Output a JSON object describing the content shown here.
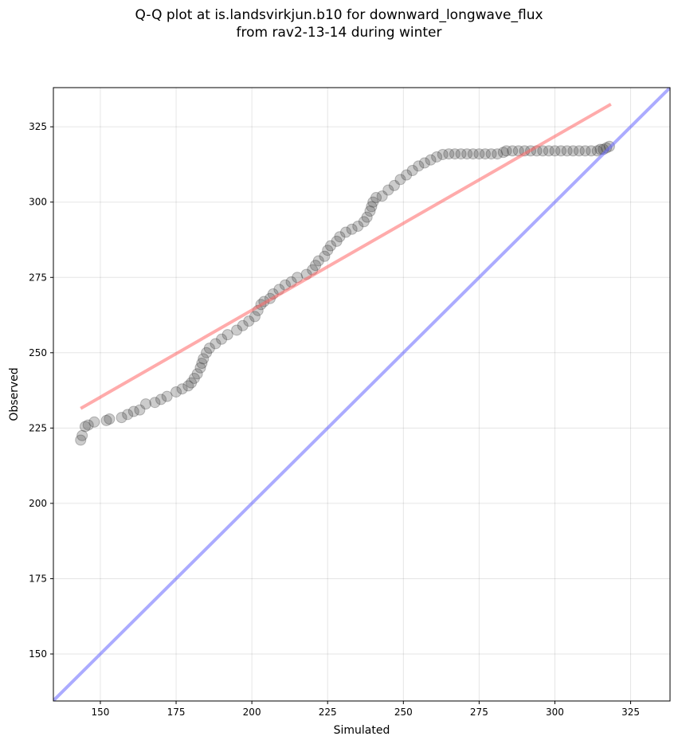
{
  "chart_data": {
    "type": "scatter",
    "title_line1": "Q-Q plot at is.landsvirkjun.b10 for downward_longwave_flux",
    "title_line2": "from rav2-13-14 during winter",
    "xlabel": "Simulated",
    "ylabel": "Observed",
    "xlim": [
      134.5,
      338
    ],
    "ylim": [
      134.4,
      338
    ],
    "xticks": [
      150,
      175,
      200,
      225,
      250,
      275,
      300,
      325
    ],
    "yticks": [
      150,
      175,
      200,
      225,
      250,
      275,
      300,
      325
    ],
    "grid": true,
    "colors": {
      "points": "#333333",
      "fit_line": "#ff6666",
      "identity_line": "#6666ff"
    },
    "fit_line": {
      "x": [
        143.5,
        318.5
      ],
      "y": [
        231.5,
        332.5
      ]
    },
    "identity_line": {
      "x": [
        134.5,
        338
      ],
      "y": [
        134.5,
        338
      ]
    },
    "points": [
      [
        143.5,
        221
      ],
      [
        144,
        222.5
      ],
      [
        145,
        225.5
      ],
      [
        146,
        226
      ],
      [
        148,
        227
      ],
      [
        152,
        227.5
      ],
      [
        153,
        228
      ],
      [
        157,
        228.5
      ],
      [
        159,
        229.5
      ],
      [
        161,
        230.5
      ],
      [
        163,
        231
      ],
      [
        165,
        233
      ],
      [
        168,
        233.5
      ],
      [
        170,
        234.5
      ],
      [
        172,
        235.5
      ],
      [
        175,
        237
      ],
      [
        177,
        238
      ],
      [
        179,
        239
      ],
      [
        180,
        240
      ],
      [
        181,
        241.5
      ],
      [
        182,
        243
      ],
      [
        183,
        245
      ],
      [
        183.5,
        246.5
      ],
      [
        184,
        248
      ],
      [
        185,
        250
      ],
      [
        186,
        251.5
      ],
      [
        188,
        253
      ],
      [
        190,
        254.5
      ],
      [
        192,
        256
      ],
      [
        195,
        257.5
      ],
      [
        197,
        259
      ],
      [
        199,
        260.5
      ],
      [
        201,
        262
      ],
      [
        202,
        264
      ],
      [
        203,
        266
      ],
      [
        204,
        267
      ],
      [
        206,
        268
      ],
      [
        207,
        269.5
      ],
      [
        209,
        271
      ],
      [
        211,
        272.5
      ],
      [
        213,
        273.5
      ],
      [
        215,
        275
      ],
      [
        218,
        276
      ],
      [
        220,
        277.5
      ],
      [
        221,
        279
      ],
      [
        222,
        280.5
      ],
      [
        224,
        282
      ],
      [
        225,
        284
      ],
      [
        226,
        285.5
      ],
      [
        228,
        287
      ],
      [
        229,
        288.5
      ],
      [
        231,
        290
      ],
      [
        233,
        291
      ],
      [
        235,
        292
      ],
      [
        237,
        293.5
      ],
      [
        238,
        295
      ],
      [
        239,
        297
      ],
      [
        239.5,
        298.5
      ],
      [
        240,
        300
      ],
      [
        241,
        301.5
      ],
      [
        243,
        302
      ],
      [
        245,
        304
      ],
      [
        247,
        305.5
      ],
      [
        249,
        307.5
      ],
      [
        251,
        309
      ],
      [
        253,
        310.5
      ],
      [
        255,
        312
      ],
      [
        257,
        313
      ],
      [
        259,
        314
      ],
      [
        261,
        315
      ],
      [
        263,
        315.8
      ],
      [
        265,
        316
      ],
      [
        267,
        316
      ],
      [
        269,
        316
      ],
      [
        271,
        316
      ],
      [
        273,
        316
      ],
      [
        275,
        316
      ],
      [
        277,
        316
      ],
      [
        279,
        316
      ],
      [
        281,
        316
      ],
      [
        283,
        316.5
      ],
      [
        284,
        317
      ],
      [
        286,
        317
      ],
      [
        288,
        317
      ],
      [
        290,
        317
      ],
      [
        292,
        317
      ],
      [
        294,
        317
      ],
      [
        296,
        317
      ],
      [
        298,
        317
      ],
      [
        300,
        317
      ],
      [
        302,
        317
      ],
      [
        304,
        317
      ],
      [
        306,
        317
      ],
      [
        308,
        317
      ],
      [
        310,
        317
      ],
      [
        312,
        317
      ],
      [
        314,
        317
      ],
      [
        315,
        317.5
      ],
      [
        316,
        317.5
      ],
      [
        317,
        318
      ],
      [
        318,
        318.5
      ]
    ]
  }
}
